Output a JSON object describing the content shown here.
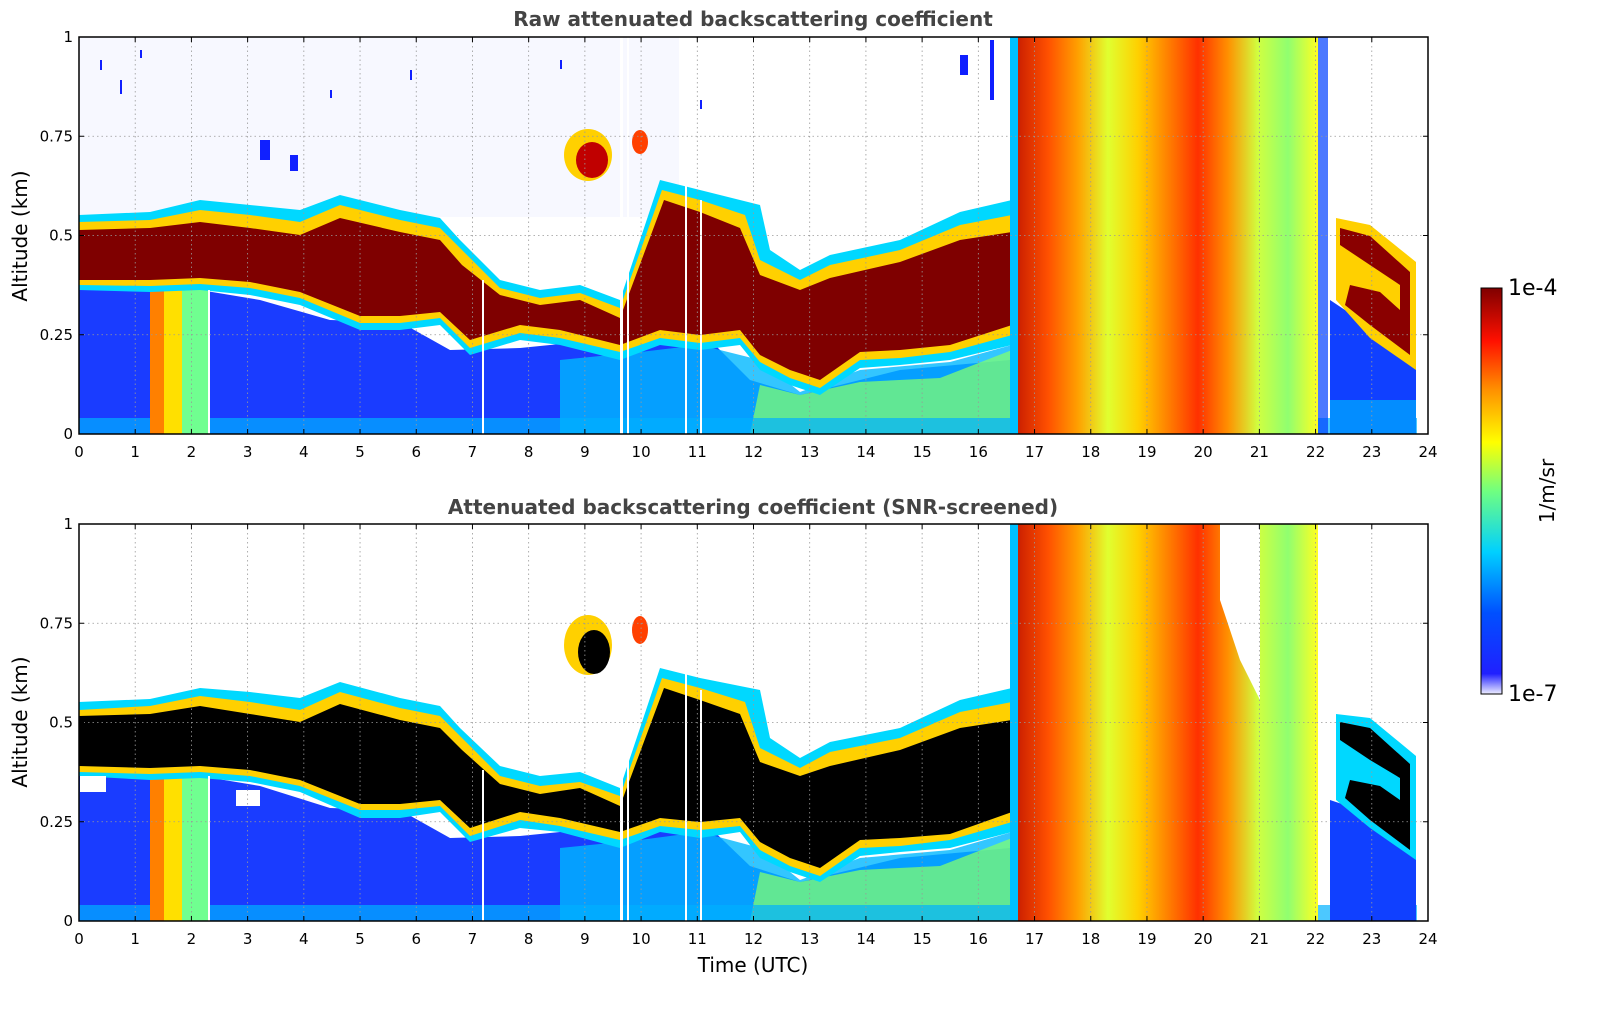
{
  "chart_data": [
    {
      "type": "heatmap",
      "title": "Raw attenuated backscattering coefficient",
      "xlabel": "",
      "ylabel": "Altitude (km)",
      "x_ticks": [
        "0",
        "1",
        "2",
        "3",
        "4",
        "5",
        "6",
        "7",
        "8",
        "9",
        "10",
        "11",
        "12",
        "13",
        "14",
        "15",
        "16",
        "17",
        "18",
        "19",
        "20",
        "21",
        "22",
        "23",
        "24"
      ],
      "y_ticks": [
        "0",
        "0.25",
        "0.5",
        "0.75",
        "1"
      ],
      "xlim": [
        0,
        24
      ],
      "ylim": [
        0,
        1
      ],
      "grid": true,
      "features": [
        {
          "region": "aerosol layer",
          "t_start": 0,
          "t_end": 16.8,
          "base_km": [
            0.37,
            0.38,
            0.33,
            0.27,
            0.2,
            0.12,
            0.28
          ],
          "top_km": [
            0.55,
            0.58,
            0.5,
            0.4,
            0.38,
            0.42,
            0.55
          ],
          "level": "high"
        },
        {
          "region": "cloud",
          "t_start": 8.7,
          "t_end": 9.3,
          "base_km": 0.62,
          "top_km": 0.76,
          "level": "high"
        },
        {
          "region": "precipitation",
          "t_start": 16.7,
          "t_end": 22.2,
          "base_km": 0,
          "top_km": 1,
          "level": "medium-high"
        },
        {
          "region": "elevated layer",
          "t_start": 22.5,
          "t_end": 23.8,
          "base_km": 0.18,
          "top_km": 0.5,
          "level": "high"
        }
      ]
    },
    {
      "type": "heatmap",
      "title": "Attenuated backscattering coefficient (SNR-screened)",
      "xlabel": "Time (UTC)",
      "ylabel": "Altitude (km)",
      "x_ticks": [
        "0",
        "1",
        "2",
        "3",
        "4",
        "5",
        "6",
        "7",
        "8",
        "9",
        "10",
        "11",
        "12",
        "13",
        "14",
        "15",
        "16",
        "17",
        "18",
        "19",
        "20",
        "21",
        "22",
        "23",
        "24"
      ],
      "y_ticks": [
        "0",
        "0.25",
        "0.5",
        "0.75",
        "1"
      ],
      "xlim": [
        0,
        24
      ],
      "ylim": [
        0,
        1
      ],
      "grid": true,
      "masked_color": "#000000"
    }
  ],
  "colorbar": {
    "label": "1/m/sr",
    "max_label": "1e-4",
    "min_label": "1e-7",
    "colormap": "jet",
    "stops": [
      "#eeeeff",
      "#0000ff",
      "#00c8ff",
      "#ffff00",
      "#ff7f00",
      "#ff0000",
      "#7f0000"
    ]
  }
}
